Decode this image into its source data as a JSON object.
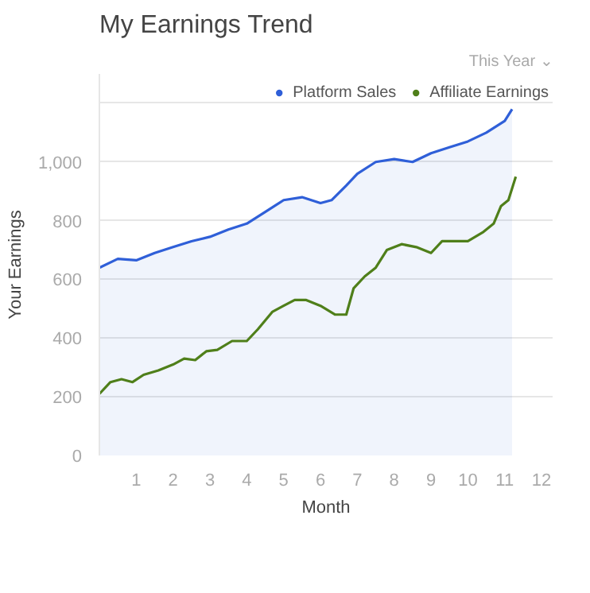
{
  "chart_data": {
    "type": "line",
    "title": "My Earnings Trend",
    "xlabel": "Month",
    "ylabel": "Your Earnings",
    "annotations": [
      "This Year ⌄"
    ],
    "series": [
      {
        "name": "Platform Sales",
        "type": "area",
        "color": "#2f5fd8",
        "x": [
          0,
          0.5,
          1,
          1.5,
          2,
          2.5,
          3,
          3.5,
          4,
          4.5,
          5,
          5.5,
          6,
          6.3,
          6.7,
          7,
          7.5,
          8,
          8.5,
          9,
          9.5,
          10,
          10.5,
          11,
          11.2
        ],
        "values": [
          640,
          670,
          665,
          690,
          710,
          730,
          745,
          770,
          790,
          830,
          870,
          880,
          860,
          870,
          920,
          960,
          1000,
          1010,
          1000,
          1030,
          1050,
          1070,
          1100,
          1140,
          1180
        ]
      },
      {
        "name": "Affiliate Earnings",
        "color": "#4f7f1a",
        "x": [
          0,
          0.3,
          0.6,
          0.9,
          1.2,
          1.6,
          2,
          2.3,
          2.6,
          2.9,
          3.2,
          3.6,
          4,
          4.3,
          4.7,
          5,
          5.3,
          5.6,
          6,
          6.4,
          6.7,
          6.9,
          7.2,
          7.5,
          7.8,
          8.2,
          8.6,
          9,
          9.3,
          9.7,
          10,
          10.4,
          10.7,
          10.9,
          11.1,
          11.3
        ],
        "values": [
          210,
          250,
          260,
          250,
          275,
          290,
          310,
          330,
          325,
          355,
          360,
          390,
          390,
          430,
          490,
          510,
          530,
          530,
          510,
          480,
          480,
          570,
          610,
          640,
          700,
          720,
          710,
          690,
          730,
          730,
          730,
          760,
          790,
          850,
          870,
          950
        ]
      }
    ],
    "xlim": [
      0,
      12.3
    ],
    "xticks": [
      1,
      2,
      3,
      4,
      5,
      6,
      7,
      8,
      9,
      10,
      11,
      12
    ],
    "ylim": [
      0,
      1300
    ],
    "yticks": [
      0,
      200,
      400,
      600,
      800,
      {
        "value": 1000,
        "label": "1,000"
      },
      {
        "value": 1200,
        "label": null
      }
    ],
    "grid": "y",
    "legend": "top right",
    "marker": "none",
    "line_style": "solid"
  }
}
